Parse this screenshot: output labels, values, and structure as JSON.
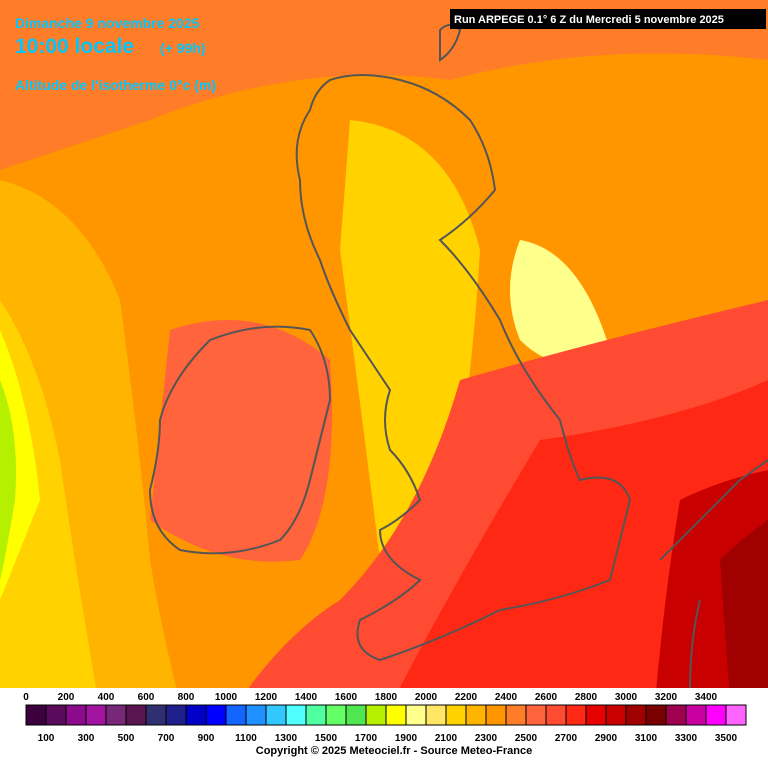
{
  "header": {
    "date": "Dimanche 9 novembre 2025",
    "time": "10:00 locale",
    "offset": "(+ 99h)",
    "variable": "Altitude de l'isotherme 0°c (m)"
  },
  "run": "Run ARPEGE 0.1° 6 Z du Mercredi 5 novembre 2025",
  "legend": {
    "ticks": [
      0,
      100,
      200,
      300,
      400,
      500,
      600,
      700,
      800,
      900,
      1000,
      1100,
      1200,
      1300,
      1400,
      1500,
      1600,
      1700,
      1800,
      1900,
      2000,
      2100,
      2200,
      2300,
      2400,
      2500,
      2600,
      2700,
      2800,
      2900,
      3000,
      3100,
      3200,
      3300,
      3400,
      3500
    ],
    "colors": [
      "#3c003c",
      "#5a0a5a",
      "#8c0a8c",
      "#a014a0",
      "#782878",
      "#5a1450",
      "#303070",
      "#20208c",
      "#0000c8",
      "#0000ff",
      "#1464ff",
      "#1e90ff",
      "#32c8ff",
      "#50ffff",
      "#50ffa0",
      "#64ff64",
      "#50e650",
      "#b4f000",
      "#ffff00",
      "#ffff8c",
      "#ffe664",
      "#ffd200",
      "#ffb400",
      "#ff9600",
      "#ff7d28",
      "#ff643c",
      "#ff4b32",
      "#ff2814",
      "#e60000",
      "#c80000",
      "#a00000",
      "#780000",
      "#a00050",
      "#c800a0",
      "#ff00ff",
      "#ff64ff"
    ]
  },
  "copyright": "Copyright © 2025 Meteociel.fr - Source Meteo-France"
}
